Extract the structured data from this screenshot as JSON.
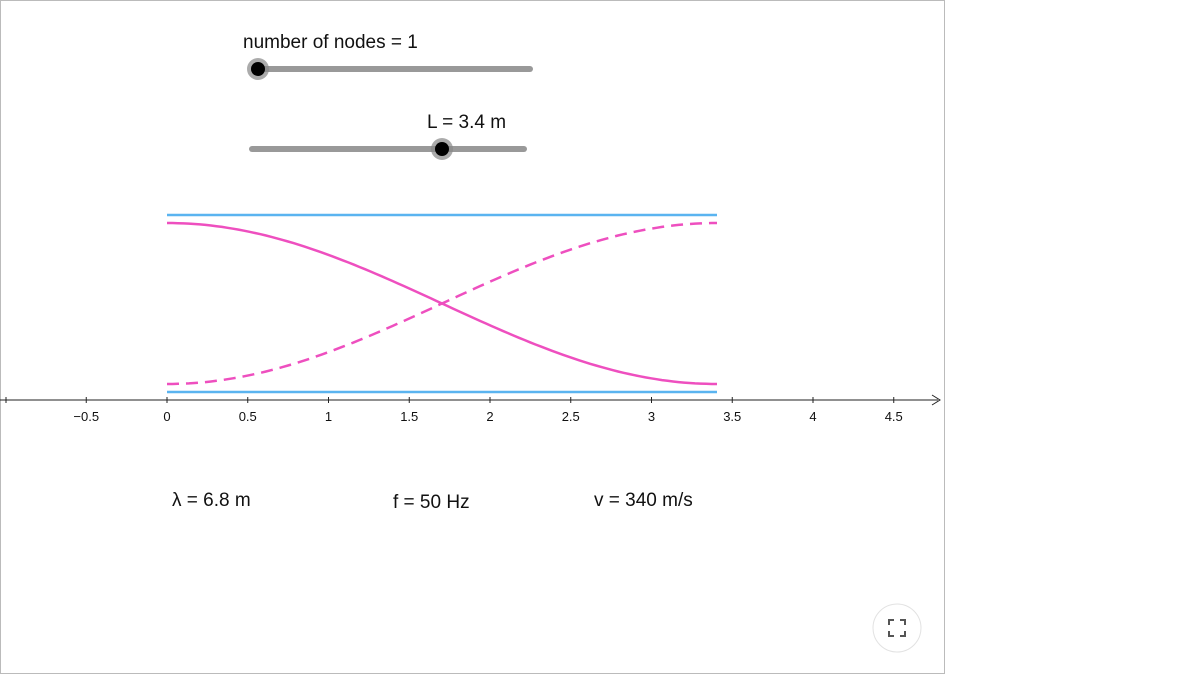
{
  "sliders": [
    {
      "label": "number of nodes = 1"
    },
    {
      "label": "L = 3.4 m"
    }
  ],
  "axis": {
    "ticks": [
      {
        "value": -0.5,
        "label": "−0.5"
      },
      0,
      0.5,
      1,
      1.5,
      2,
      2.5,
      3,
      3.5,
      4,
      4.5
    ]
  },
  "readouts": [
    "λ = 6.8 m",
    "f = 50 Hz",
    "v = 340 m/s"
  ]
}
